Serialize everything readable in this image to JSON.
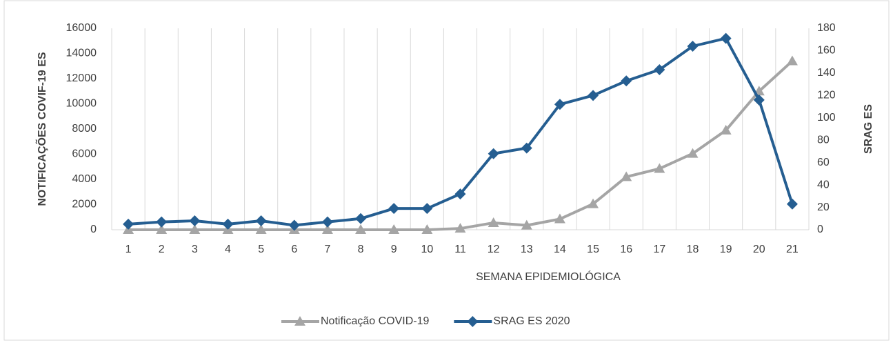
{
  "chart_data": {
    "type": "line",
    "xlabel": "SEMANA EPIDEMIOLÓGICA",
    "ylabel": "NOTIFICAÇÕES COVIF-19 ES",
    "y2label": "SRAG ES",
    "categories": [
      "1",
      "2",
      "3",
      "4",
      "5",
      "6",
      "7",
      "8",
      "9",
      "10",
      "11",
      "12",
      "13",
      "14",
      "15",
      "16",
      "17",
      "18",
      "19",
      "20",
      "21"
    ],
    "series": [
      {
        "name": "Notificação COVID-19",
        "color": "#a5a5a5",
        "marker": "triangle",
        "axis": "y",
        "values": [
          0,
          0,
          0,
          0,
          0,
          0,
          0,
          0,
          0,
          0,
          100,
          550,
          350,
          850,
          2050,
          4200,
          4850,
          6050,
          7900,
          11000,
          13400
        ]
      },
      {
        "name": "SRAG  ES 2020",
        "color": "#255e91",
        "marker": "diamond",
        "axis": "y2",
        "values": [
          5,
          7,
          8,
          5,
          8,
          4,
          7,
          10,
          19,
          19,
          32,
          68,
          73,
          112,
          120,
          133,
          143,
          164,
          171,
          116,
          23
        ]
      }
    ],
    "ylim": [
      0,
      16000
    ],
    "yticks": [
      0,
      2000,
      4000,
      6000,
      8000,
      10000,
      12000,
      14000,
      16000
    ],
    "y2lim": [
      0,
      180
    ],
    "y2ticks": [
      0,
      20,
      40,
      60,
      80,
      100,
      120,
      140,
      160,
      180
    ],
    "grid": true,
    "legend": "bottom"
  }
}
